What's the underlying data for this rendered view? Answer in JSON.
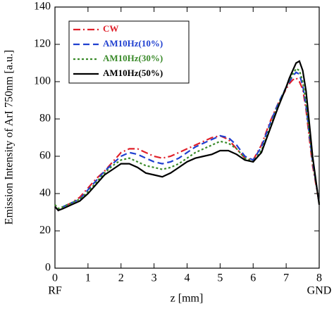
{
  "chart_data": {
    "type": "line",
    "x_label": "z [mm]",
    "y_label": "Emission Intensity of ArI 750nm [a.u.]",
    "x": [
      0,
      0.1,
      0.25,
      0.5,
      0.75,
      1,
      1.25,
      1.5,
      1.75,
      2,
      2.25,
      2.5,
      2.75,
      3,
      3.25,
      3.5,
      3.75,
      4,
      4.25,
      4.5,
      4.75,
      5,
      5.25,
      5.5,
      5.75,
      6,
      6.25,
      6.5,
      6.75,
      7,
      7.1,
      7.2,
      7.3,
      7.4,
      7.5,
      7.6,
      7.7,
      7.8,
      7.9,
      8
    ],
    "series": [
      {
        "name": "CW",
        "color": "#e0202a",
        "dash": "dashdot",
        "values": [
          33,
          31,
          33,
          35,
          38,
          43,
          48,
          52,
          57,
          62,
          64,
          64,
          62,
          60,
          59,
          60,
          62,
          64,
          66,
          68,
          70,
          71,
          69,
          64,
          59,
          58,
          66,
          78,
          88,
          96,
          99,
          101,
          102,
          100,
          96,
          85,
          70,
          55,
          45,
          35
        ]
      },
      {
        "name": "AM10Hz(10%)",
        "color": "#2040d0",
        "dash": "dash",
        "values": [
          33,
          31,
          33,
          35,
          37,
          42,
          47,
          52,
          56,
          60,
          62,
          61,
          59,
          57,
          56,
          57,
          59,
          62,
          65,
          67,
          69,
          71,
          70,
          66,
          60,
          58,
          65,
          77,
          88,
          97,
          100,
          103,
          105,
          104,
          98,
          87,
          72,
          57,
          46,
          35
        ]
      },
      {
        "name": "AM10Hz(30%)",
        "color": "#3a8a2a",
        "dash": "dot",
        "values": [
          34,
          32,
          33,
          35,
          37,
          41,
          46,
          51,
          55,
          58,
          59,
          57,
          55,
          54,
          53,
          54,
          56,
          59,
          62,
          64,
          66,
          68,
          67,
          64,
          59,
          57,
          63,
          75,
          87,
          97,
          101,
          104,
          107,
          106,
          100,
          89,
          73,
          58,
          46,
          35
        ]
      },
      {
        "name": "AM10Hz(50%)",
        "color": "#000000",
        "dash": "solid",
        "values": [
          33,
          31,
          32,
          34,
          36,
          40,
          45,
          50,
          53,
          56,
          56,
          54,
          51,
          50,
          49,
          51,
          54,
          57,
          59,
          60,
          61,
          63,
          63,
          61,
          58,
          57,
          62,
          74,
          86,
          97,
          102,
          106,
          110,
          111,
          106,
          95,
          78,
          60,
          47,
          34
        ]
      }
    ],
    "annotations": [
      {
        "text": "RF",
        "x": 0
      },
      {
        "text": "GND",
        "x": 8
      }
    ],
    "xlim": [
      0,
      8
    ],
    "xticks": [
      0,
      1,
      2,
      3,
      4,
      5,
      6,
      7,
      8
    ],
    "ylim": [
      0,
      140
    ],
    "yticks": [
      0,
      20,
      40,
      60,
      80,
      100,
      120,
      140
    ],
    "legend": "upper-left",
    "grid": false
  }
}
